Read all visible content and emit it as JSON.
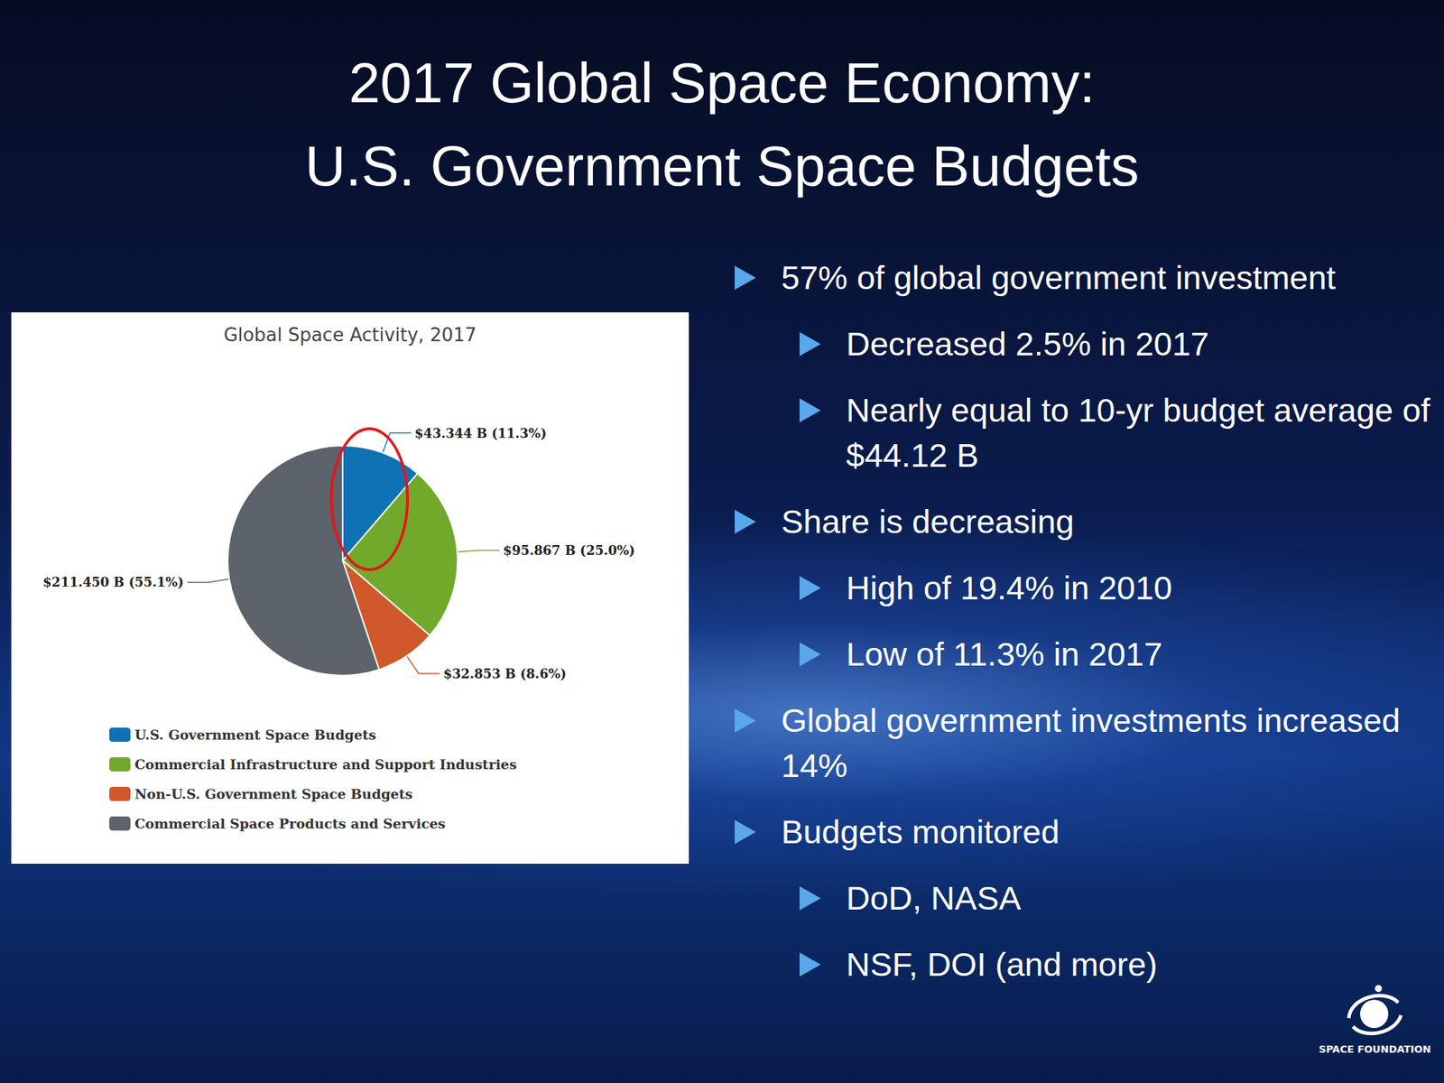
{
  "slide": {
    "title": [
      "2017 Global Space Economy:",
      "U.S. Government Space Budgets"
    ],
    "bullets": [
      {
        "text": "57% of global government investment",
        "sub": [
          "Decreased 2.5% in 2017",
          "Nearly equal to 10-yr budget average of $44.12 B"
        ]
      },
      {
        "text": "Share is decreasing",
        "sub": [
          "High of 19.4% in 2010",
          "Low of 11.3% in 2017"
        ]
      },
      {
        "text": "Global government investments increased 14%",
        "sub": []
      },
      {
        "text": "Budgets monitored",
        "sub": [
          "DoD, NASA",
          "NSF, DOI (and more)"
        ]
      }
    ],
    "logo": "SPACE FOUNDATION"
  },
  "chart_data": {
    "type": "pie",
    "title": "Global Space Activity, 2017",
    "categories": [
      "U.S. Government Space Budgets",
      "Commercial Infrastructure and Support Industries",
      "Non-U.S. Government Space Budgets",
      "Commercial Space Products and Services"
    ],
    "values": [
      43.344,
      95.867,
      32.853,
      211.45
    ],
    "value_labels": [
      "$43.344 B (11.3%)",
      "$95.867 B (25.0%)",
      "$32.853 B (8.6%)",
      "$211.450 B (55.1%)"
    ],
    "colors": [
      "#0e72b5",
      "#72a92b",
      "#d0582a",
      "#5c636a"
    ],
    "data_labels": true,
    "legend": "bottom-left"
  }
}
